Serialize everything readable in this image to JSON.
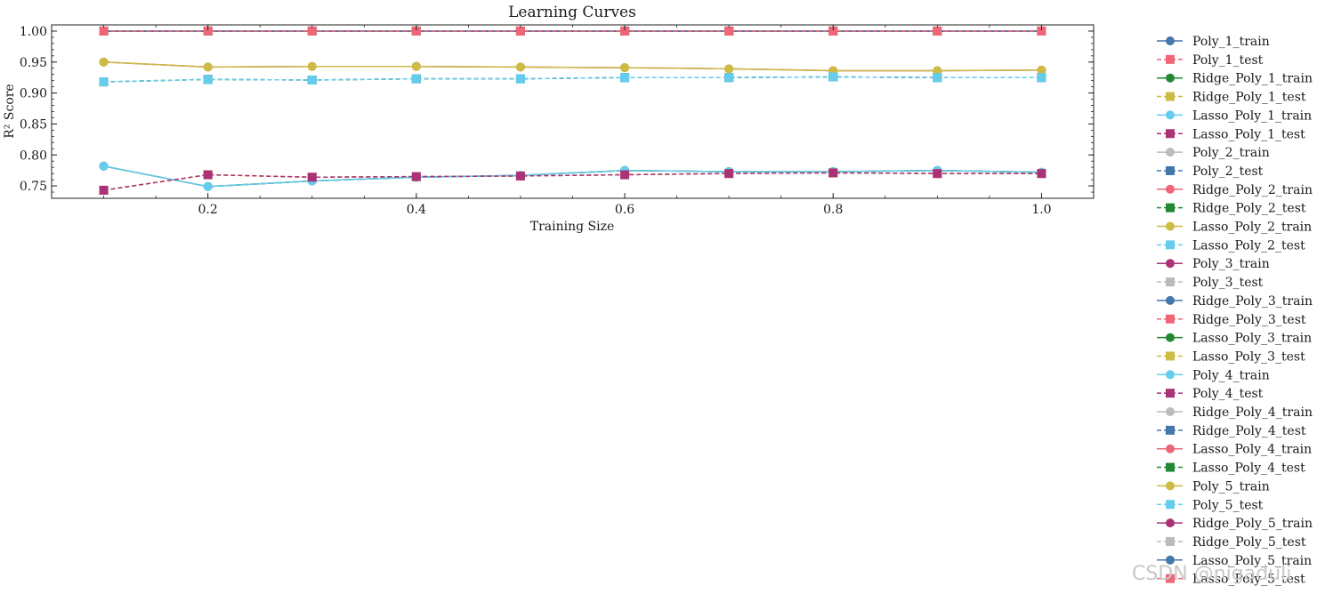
{
  "chart_data": {
    "type": "line",
    "title": "Learning Curves",
    "xlabel": "Training Size",
    "ylabel": "R² Score",
    "xlim": [
      0.05,
      1.05
    ],
    "ylim": [
      0.73,
      1.01
    ],
    "xticks": [
      0.2,
      0.4,
      0.6,
      0.8,
      1.0
    ],
    "xtick_labels": [
      "0.2",
      "0.4",
      "0.6",
      "0.8",
      "1.0"
    ],
    "yticks": [
      0.75,
      0.8,
      0.85,
      0.9,
      0.95,
      1.0
    ],
    "ytick_labels": [
      "0.75",
      "0.80",
      "0.85",
      "0.90",
      "0.95",
      "1.00"
    ],
    "x": [
      0.1,
      0.2,
      0.3,
      0.4,
      0.5,
      0.6,
      0.7,
      0.8,
      0.9,
      1.0
    ],
    "legend_position": "outside-right",
    "series": [
      {
        "name": "Poly_1_train",
        "color": "#4477aa",
        "style": "solid",
        "marker": "circle",
        "values": [
          0.782,
          0.749,
          0.758,
          0.764,
          0.767,
          0.775,
          0.773,
          0.773,
          0.775,
          0.772
        ]
      },
      {
        "name": "Poly_1_test",
        "color": "#ee6677",
        "style": "dashed",
        "marker": "square",
        "values": [
          0.743,
          0.768,
          0.764,
          0.765,
          0.766,
          0.768,
          0.77,
          0.771,
          0.77,
          0.77
        ]
      },
      {
        "name": "Ridge_Poly_1_train",
        "color": "#228833",
        "style": "solid",
        "marker": "circle",
        "values": [
          0.782,
          0.749,
          0.758,
          0.764,
          0.767,
          0.775,
          0.773,
          0.773,
          0.775,
          0.772
        ]
      },
      {
        "name": "Ridge_Poly_1_test",
        "color": "#ccbb44",
        "style": "dashed",
        "marker": "square",
        "values": [
          0.743,
          0.768,
          0.764,
          0.765,
          0.766,
          0.768,
          0.77,
          0.771,
          0.77,
          0.77
        ]
      },
      {
        "name": "Lasso_Poly_1_train",
        "color": "#66ccee",
        "style": "solid",
        "marker": "circle",
        "values": [
          0.782,
          0.749,
          0.758,
          0.764,
          0.767,
          0.775,
          0.773,
          0.773,
          0.775,
          0.772
        ]
      },
      {
        "name": "Lasso_Poly_1_test",
        "color": "#aa3377",
        "style": "dashed",
        "marker": "square",
        "values": [
          0.743,
          0.768,
          0.764,
          0.765,
          0.766,
          0.768,
          0.77,
          0.771,
          0.77,
          0.77
        ]
      },
      {
        "name": "Poly_2_train",
        "color": "#bbbbbb",
        "style": "solid",
        "marker": "circle",
        "values": [
          0.95,
          0.942,
          0.943,
          0.943,
          0.942,
          0.941,
          0.939,
          0.936,
          0.936,
          0.937
        ]
      },
      {
        "name": "Poly_2_test",
        "color": "#4477aa",
        "style": "dashed",
        "marker": "square",
        "values": [
          0.918,
          0.922,
          0.921,
          0.923,
          0.923,
          0.925,
          0.925,
          0.926,
          0.925,
          0.925
        ]
      },
      {
        "name": "Ridge_Poly_2_train",
        "color": "#ee6677",
        "style": "solid",
        "marker": "circle",
        "values": [
          0.95,
          0.942,
          0.943,
          0.943,
          0.942,
          0.941,
          0.939,
          0.936,
          0.936,
          0.937
        ]
      },
      {
        "name": "Ridge_Poly_2_test",
        "color": "#228833",
        "style": "dashed",
        "marker": "square",
        "values": [
          0.918,
          0.922,
          0.921,
          0.923,
          0.923,
          0.925,
          0.925,
          0.926,
          0.925,
          0.925
        ]
      },
      {
        "name": "Lasso_Poly_2_train",
        "color": "#ccbb44",
        "style": "solid",
        "marker": "circle",
        "values": [
          0.95,
          0.942,
          0.943,
          0.943,
          0.942,
          0.941,
          0.939,
          0.936,
          0.936,
          0.937
        ]
      },
      {
        "name": "Lasso_Poly_2_test",
        "color": "#66ccee",
        "style": "dashed",
        "marker": "square",
        "values": [
          0.918,
          0.922,
          0.921,
          0.923,
          0.923,
          0.925,
          0.925,
          0.926,
          0.925,
          0.925
        ]
      },
      {
        "name": "Poly_3_train",
        "color": "#aa3377",
        "style": "solid",
        "marker": "circle",
        "values": [
          1.0,
          1.0,
          1.0,
          1.0,
          1.0,
          1.0,
          1.0,
          1.0,
          1.0,
          1.0
        ]
      },
      {
        "name": "Poly_3_test",
        "color": "#bbbbbb",
        "style": "dashed",
        "marker": "square",
        "values": [
          1.0,
          1.0,
          1.0,
          1.0,
          1.0,
          1.0,
          1.0,
          1.0,
          1.0,
          1.0
        ]
      },
      {
        "name": "Ridge_Poly_3_train",
        "color": "#4477aa",
        "style": "solid",
        "marker": "circle",
        "values": [
          1.0,
          1.0,
          1.0,
          1.0,
          1.0,
          1.0,
          1.0,
          1.0,
          1.0,
          1.0
        ]
      },
      {
        "name": "Ridge_Poly_3_test",
        "color": "#ee6677",
        "style": "dashed",
        "marker": "square",
        "values": [
          1.0,
          1.0,
          1.0,
          1.0,
          1.0,
          1.0,
          1.0,
          1.0,
          1.0,
          1.0
        ]
      },
      {
        "name": "Lasso_Poly_3_train",
        "color": "#228833",
        "style": "solid",
        "marker": "circle",
        "values": [
          1.0,
          1.0,
          1.0,
          1.0,
          1.0,
          1.0,
          1.0,
          1.0,
          1.0,
          1.0
        ]
      },
      {
        "name": "Lasso_Poly_3_test",
        "color": "#ccbb44",
        "style": "dashed",
        "marker": "square",
        "values": [
          1.0,
          1.0,
          1.0,
          1.0,
          1.0,
          1.0,
          1.0,
          1.0,
          1.0,
          1.0
        ]
      },
      {
        "name": "Poly_4_train",
        "color": "#66ccee",
        "style": "solid",
        "marker": "circle",
        "values": [
          1.0,
          1.0,
          1.0,
          1.0,
          1.0,
          1.0,
          1.0,
          1.0,
          1.0,
          1.0
        ]
      },
      {
        "name": "Poly_4_test",
        "color": "#aa3377",
        "style": "dashed",
        "marker": "square",
        "values": [
          1.0,
          1.0,
          1.0,
          1.0,
          1.0,
          1.0,
          1.0,
          1.0,
          1.0,
          1.0
        ]
      },
      {
        "name": "Ridge_Poly_4_train",
        "color": "#bbbbbb",
        "style": "solid",
        "marker": "circle",
        "values": [
          1.0,
          1.0,
          1.0,
          1.0,
          1.0,
          1.0,
          1.0,
          1.0,
          1.0,
          1.0
        ]
      },
      {
        "name": "Ridge_Poly_4_test",
        "color": "#4477aa",
        "style": "dashed",
        "marker": "square",
        "values": [
          1.0,
          1.0,
          1.0,
          1.0,
          1.0,
          1.0,
          1.0,
          1.0,
          1.0,
          1.0
        ]
      },
      {
        "name": "Lasso_Poly_4_train",
        "color": "#ee6677",
        "style": "solid",
        "marker": "circle",
        "values": [
          1.0,
          1.0,
          1.0,
          1.0,
          1.0,
          1.0,
          1.0,
          1.0,
          1.0,
          1.0
        ]
      },
      {
        "name": "Lasso_Poly_4_test",
        "color": "#228833",
        "style": "dashed",
        "marker": "square",
        "values": [
          1.0,
          1.0,
          1.0,
          1.0,
          1.0,
          1.0,
          1.0,
          1.0,
          1.0,
          1.0
        ]
      },
      {
        "name": "Poly_5_train",
        "color": "#ccbb44",
        "style": "solid",
        "marker": "circle",
        "values": [
          1.0,
          1.0,
          1.0,
          1.0,
          1.0,
          1.0,
          1.0,
          1.0,
          1.0,
          1.0
        ]
      },
      {
        "name": "Poly_5_test",
        "color": "#66ccee",
        "style": "dashed",
        "marker": "square",
        "values": [
          1.0,
          1.0,
          1.0,
          1.0,
          1.0,
          1.0,
          1.0,
          1.0,
          1.0,
          1.0
        ]
      },
      {
        "name": "Ridge_Poly_5_train",
        "color": "#aa3377",
        "style": "solid",
        "marker": "circle",
        "values": [
          1.0,
          1.0,
          1.0,
          1.0,
          1.0,
          1.0,
          1.0,
          1.0,
          1.0,
          1.0
        ]
      },
      {
        "name": "Ridge_Poly_5_test",
        "color": "#bbbbbb",
        "style": "dashed",
        "marker": "square",
        "values": [
          1.0,
          1.0,
          1.0,
          1.0,
          1.0,
          1.0,
          1.0,
          1.0,
          1.0,
          1.0
        ]
      },
      {
        "name": "Lasso_Poly_5_train",
        "color": "#4477aa",
        "style": "solid",
        "marker": "circle",
        "values": [
          1.0,
          1.0,
          1.0,
          1.0,
          1.0,
          1.0,
          1.0,
          1.0,
          1.0,
          1.0
        ]
      },
      {
        "name": "Lasso_Poly_5_test",
        "color": "#ee6677",
        "style": "dashed",
        "marker": "square",
        "values": [
          1.0,
          1.0,
          1.0,
          1.0,
          1.0,
          1.0,
          1.0,
          1.0,
          1.0,
          1.0
        ]
      }
    ]
  },
  "watermark": "CSDN @nigaduli"
}
